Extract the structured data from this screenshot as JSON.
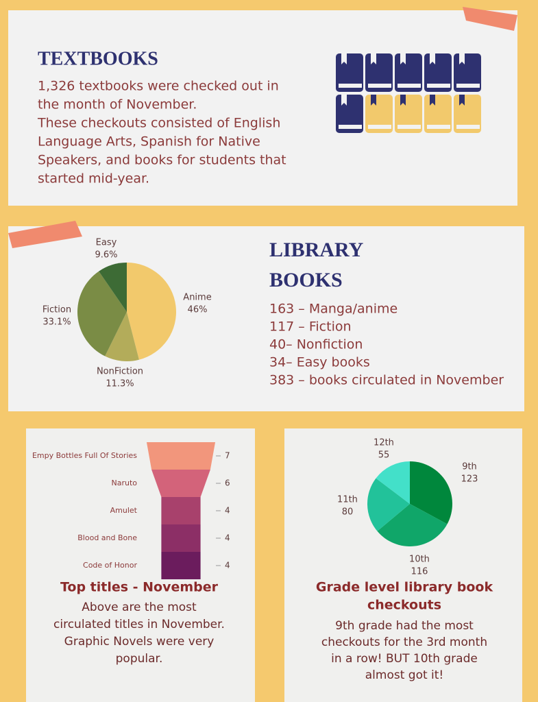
{
  "textbooks": {
    "title": "TEXTBOOKS",
    "lines": [
      "1,326 textbooks were checked out in",
      "the month of November.",
      "These checkouts consisted of English",
      "Language Arts, Spanish for Native",
      "Speakers, and books for students that",
      "started mid-year."
    ]
  },
  "library": {
    "title_lines": [
      "LIBRARY",
      "BOOKS"
    ],
    "items": [
      "163 – Manga/anime",
      "117 – Fiction",
      "40– Nonfiction",
      "34– Easy books",
      "383 – books circulated in November"
    ]
  },
  "top_titles": {
    "title": "Top titles - November",
    "lines": [
      "Above are the most",
      "circulated titles in November.",
      "Graphic Novels were very",
      "popular."
    ]
  },
  "grade_level": {
    "title_lines": [
      "Grade level library book",
      "checkouts"
    ],
    "lines": [
      "9th grade had the most",
      "checkouts for the 3rd month",
      "in a row! BUT 10th grade",
      "almost got it!"
    ]
  },
  "chart_data": [
    {
      "type": "pie",
      "categories": [
        "Anime",
        "NonFiction",
        "Fiction",
        "Easy"
      ],
      "values": [
        46,
        11.3,
        33.1,
        9.6
      ],
      "value_labels": [
        "46%",
        "11.3%",
        "33.1%",
        "9.6%"
      ],
      "colors": [
        "#f2c96c",
        "#b3ac5a",
        "#7a8c45",
        "#3d6b35"
      ]
    },
    {
      "type": "funnel",
      "categories": [
        "Empy Bottles Full Of Stories",
        "Naruto",
        "Amulet",
        "Blood and Bone",
        "Code of Honor"
      ],
      "values": [
        7,
        6,
        4,
        4,
        4
      ],
      "colors": [
        "#f2967c",
        "#d3637a",
        "#a8416c",
        "#8c2f66",
        "#6b1c5d"
      ]
    },
    {
      "type": "pie",
      "categories": [
        "9th",
        "10th",
        "11th",
        "12th"
      ],
      "values": [
        123,
        116,
        80,
        55
      ],
      "colors": [
        "#00873c",
        "#10a669",
        "#22c29a",
        "#43e0c9"
      ]
    }
  ]
}
